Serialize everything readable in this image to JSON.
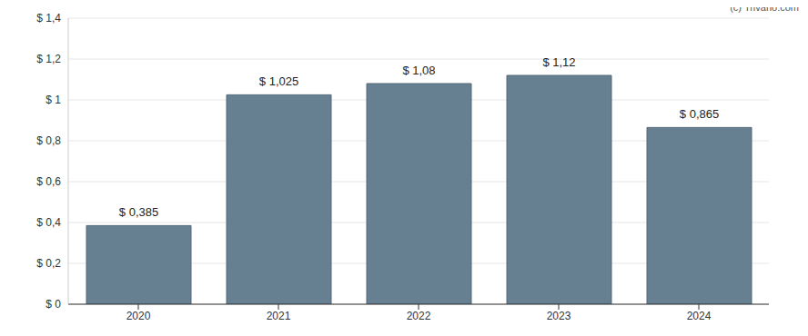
{
  "chart_data": {
    "type": "bar",
    "categories": [
      "2020",
      "2021",
      "2022",
      "2023",
      "2024"
    ],
    "values": [
      0.385,
      1.025,
      1.08,
      1.12,
      0.865
    ],
    "value_labels": [
      "$ 0,385",
      "$ 1,025",
      "$ 1,08",
      "$ 1,12",
      "$ 0,865"
    ],
    "data_labels": true,
    "color": "#667f91",
    "ylim": [
      0,
      1.4
    ],
    "yticks": [
      {
        "value": 0,
        "label": "$ 0"
      },
      {
        "value": 0.2,
        "label": "$ 0,2"
      },
      {
        "value": 0.4,
        "label": "$ 0,4"
      },
      {
        "value": 0.6,
        "label": "$ 0,6"
      },
      {
        "value": 0.8,
        "label": "$ 0,8"
      },
      {
        "value": 1,
        "label": "$ 1"
      },
      {
        "value": 1.2,
        "label": "$ 1,2"
      },
      {
        "value": 1.4,
        "label": "$ 1,4"
      }
    ],
    "grid": true,
    "annotations": [
      "(c) Trivano.com"
    ]
  }
}
